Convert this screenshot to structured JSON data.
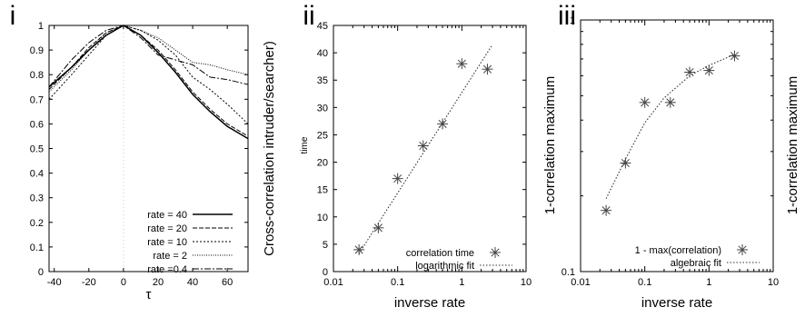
{
  "chart_data": [
    {
      "type": "line",
      "panel_label": "i",
      "xlabel": "τ",
      "ylabel": "Cross-correlation intruder/searcher)",
      "xlim": [
        -43,
        72
      ],
      "ylim": [
        0,
        1
      ],
      "xticks": [
        "-40",
        "-20",
        "0",
        "20",
        "40",
        "60"
      ],
      "yticks": [
        "0",
        "0.1",
        "0.2",
        "0.3",
        "0.4",
        "0.5",
        "0.6",
        "0.7",
        "0.8",
        "0.9",
        "1"
      ],
      "grid": "vertical at 0",
      "legend_position": "bottom-right",
      "series": [
        {
          "name": "rate = 40",
          "style": "solid",
          "x": [
            -43,
            -30,
            -20,
            -10,
            0,
            10,
            20,
            30,
            40,
            50,
            60,
            72
          ],
          "y": [
            0.75,
            0.83,
            0.9,
            0.96,
            1.0,
            0.96,
            0.89,
            0.81,
            0.72,
            0.65,
            0.59,
            0.54
          ]
        },
        {
          "name": "rate = 20",
          "style": "dashed",
          "x": [
            -43,
            -30,
            -20,
            -10,
            0,
            10,
            20,
            30,
            40,
            50,
            60,
            72
          ],
          "y": [
            0.74,
            0.83,
            0.91,
            0.97,
            1.0,
            0.96,
            0.9,
            0.82,
            0.73,
            0.66,
            0.6,
            0.55
          ]
        },
        {
          "name": "rate = 10",
          "style": "dotted",
          "x": [
            -43,
            -30,
            -20,
            -10,
            0,
            10,
            20,
            30,
            40,
            50,
            60,
            72
          ],
          "y": [
            0.7,
            0.8,
            0.88,
            0.96,
            1.0,
            0.98,
            0.94,
            0.88,
            0.79,
            0.74,
            0.68,
            0.6
          ]
        },
        {
          "name": "rate =  2",
          "style": "fine-dotted",
          "x": [
            -43,
            -30,
            -20,
            -10,
            0,
            10,
            20,
            30,
            40,
            50,
            60,
            72
          ],
          "y": [
            0.73,
            0.82,
            0.9,
            0.97,
            1.0,
            0.98,
            0.95,
            0.9,
            0.85,
            0.84,
            0.82,
            0.8
          ]
        },
        {
          "name": "rate =0.4",
          "style": "dash-dot",
          "x": [
            -43,
            -30,
            -20,
            -10,
            0,
            10,
            20,
            30,
            40,
            50,
            60,
            72
          ],
          "y": [
            0.75,
            0.86,
            0.93,
            0.98,
            1.0,
            0.95,
            0.88,
            0.86,
            0.84,
            0.79,
            0.78,
            0.76
          ]
        }
      ]
    },
    {
      "type": "scatter",
      "panel_label": "ii",
      "xlabel": "inverse rate",
      "ylabel": "time",
      "x_scale": "log",
      "xlim": [
        0.01,
        10
      ],
      "ylim": [
        0,
        45
      ],
      "xticks": [
        "0.01",
        "0.1",
        "1",
        "10"
      ],
      "yticks": [
        "0",
        "5",
        "10",
        "15",
        "20",
        "25",
        "30",
        "35",
        "40",
        "45"
      ],
      "grid": "off",
      "legend_position": "bottom-right",
      "series": [
        {
          "name": "correlation time",
          "style": "markers",
          "x": [
            0.025,
            0.05,
            0.1,
            0.25,
            0.5,
            1,
            2.5
          ],
          "y": [
            4,
            8,
            17,
            23,
            27,
            38,
            37
          ]
        },
        {
          "name": "logarithmic fit",
          "style": "dotted-line",
          "x": [
            0.025,
            3
          ],
          "y": [
            3.3,
            41.5
          ]
        }
      ]
    },
    {
      "type": "scatter",
      "panel_label": "iii",
      "xlabel": "inverse rate",
      "ylabel": "1-correlation maximum",
      "ylabel_right": "1-correlation maximum",
      "x_scale": "log",
      "y_scale": "log",
      "xlim": [
        0.01,
        10
      ],
      "ylim": [
        0.1,
        1
      ],
      "xticks": [
        "0.01",
        "0.1",
        "1",
        "10"
      ],
      "yticks": [
        "0.1",
        "1"
      ],
      "grid": "off",
      "legend_position": "bottom-right",
      "series": [
        {
          "name": "1 - max(correlation)",
          "style": "markers",
          "x": [
            0.025,
            0.05,
            0.1,
            0.25,
            0.5,
            1,
            2.5
          ],
          "y": [
            0.175,
            0.27,
            0.47,
            0.47,
            0.62,
            0.63,
            0.72
          ]
        },
        {
          "name": "algebraic fit",
          "style": "dotted-line",
          "x": [
            0.025,
            0.05,
            0.1,
            0.2,
            0.5,
            1,
            2.5
          ],
          "y": [
            0.195,
            0.28,
            0.39,
            0.49,
            0.6,
            0.66,
            0.73
          ]
        }
      ]
    }
  ]
}
